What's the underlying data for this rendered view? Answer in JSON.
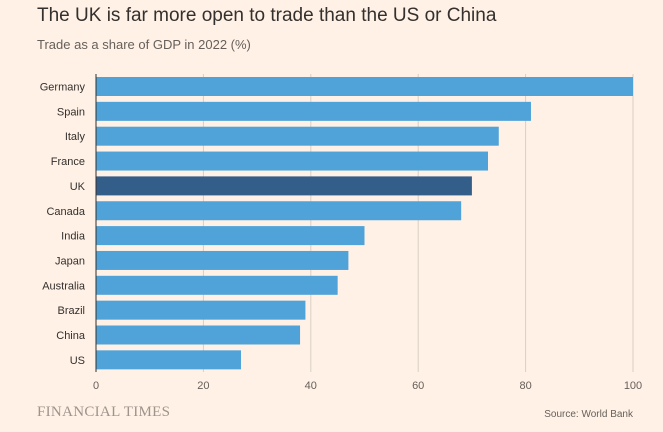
{
  "title": "The UK is far more open to trade than the US or China",
  "subtitle": "Trade as a share of GDP in 2022 (%)",
  "footer": {
    "brand": "FINANCIAL TIMES",
    "source": "Source: World Bank"
  },
  "colors": {
    "bar": "#4fa3d8",
    "highlight": "#345e8a",
    "grid": "#d9cfc6",
    "background": "#fff1e5"
  },
  "chart_data": {
    "type": "bar",
    "orientation": "horizontal",
    "title": "The UK is far more open to trade than the US or China",
    "subtitle": "Trade as a share of GDP in 2022 (%)",
    "categories": [
      "Germany",
      "Spain",
      "Italy",
      "France",
      "UK",
      "Canada",
      "India",
      "Japan",
      "Australia",
      "Brazil",
      "China",
      "US"
    ],
    "values": [
      100,
      81,
      75,
      73,
      70,
      68,
      50,
      47,
      45,
      39,
      38,
      27
    ],
    "highlight": "UK",
    "xlim": [
      0,
      100
    ],
    "xticks": [
      0,
      20,
      40,
      60,
      80,
      100
    ],
    "xlabel": "",
    "ylabel": "",
    "grid": true
  }
}
